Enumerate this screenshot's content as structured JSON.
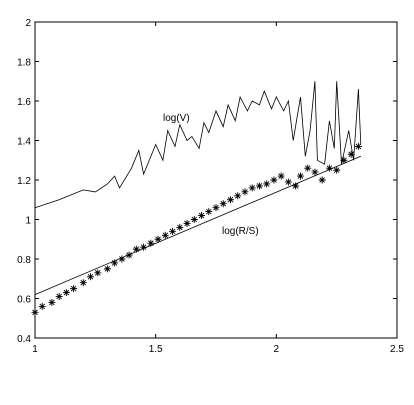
{
  "chart_data": {
    "type": "line",
    "xlim": [
      1,
      2.5
    ],
    "ylim": [
      0.4,
      2
    ],
    "xticks": [
      1,
      1.5,
      2,
      2.5
    ],
    "yticks": [
      0.4,
      0.6,
      0.8,
      1,
      1.2,
      1.4,
      1.6,
      1.8,
      2
    ],
    "color": "#000000",
    "series": [
      {
        "name": "log(V)",
        "marker": "none",
        "x": [
          1,
          1.1,
          1.2,
          1.25,
          1.3,
          1.33,
          1.35,
          1.4,
          1.43,
          1.45,
          1.5,
          1.53,
          1.55,
          1.58,
          1.6,
          1.63,
          1.65,
          1.68,
          1.7,
          1.72,
          1.75,
          1.78,
          1.8,
          1.83,
          1.85,
          1.88,
          1.9,
          1.93,
          1.95,
          1.98,
          2.0,
          2.03,
          2.05,
          2.07,
          2.1,
          2.12,
          2.14,
          2.16,
          2.17,
          2.2,
          2.22,
          2.24,
          2.25,
          2.27,
          2.3,
          2.32,
          2.34,
          2.35
        ],
        "values": [
          1.06,
          1.1,
          1.15,
          1.14,
          1.18,
          1.22,
          1.16,
          1.26,
          1.35,
          1.23,
          1.38,
          1.3,
          1.45,
          1.37,
          1.48,
          1.4,
          1.42,
          1.36,
          1.49,
          1.44,
          1.55,
          1.47,
          1.58,
          1.5,
          1.62,
          1.55,
          1.6,
          1.58,
          1.65,
          1.56,
          1.62,
          1.55,
          1.6,
          1.4,
          1.62,
          1.32,
          1.45,
          1.7,
          1.3,
          1.28,
          1.5,
          1.36,
          1.7,
          1.28,
          1.45,
          1.3,
          1.66,
          1.38
        ]
      },
      {
        "name": "log(R/S)",
        "marker": "star",
        "x": [
          1.0,
          1.03,
          1.07,
          1.1,
          1.13,
          1.16,
          1.2,
          1.23,
          1.26,
          1.3,
          1.33,
          1.36,
          1.39,
          1.42,
          1.45,
          1.48,
          1.51,
          1.54,
          1.57,
          1.6,
          1.63,
          1.66,
          1.69,
          1.72,
          1.75,
          1.78,
          1.81,
          1.84,
          1.87,
          1.9,
          1.93,
          1.96,
          1.99,
          2.02,
          2.05,
          2.08,
          2.1,
          2.13,
          2.16,
          2.19,
          2.22,
          2.25,
          2.28,
          2.31,
          2.34
        ],
        "values": [
          0.53,
          0.56,
          0.58,
          0.61,
          0.63,
          0.65,
          0.68,
          0.71,
          0.73,
          0.75,
          0.78,
          0.8,
          0.82,
          0.85,
          0.86,
          0.88,
          0.9,
          0.92,
          0.94,
          0.96,
          0.98,
          1.0,
          1.02,
          1.04,
          1.06,
          1.08,
          1.1,
          1.12,
          1.14,
          1.16,
          1.17,
          1.18,
          1.2,
          1.22,
          1.19,
          1.17,
          1.22,
          1.26,
          1.24,
          1.2,
          1.26,
          1.25,
          1.3,
          1.33,
          1.37
        ]
      }
    ],
    "fit_line": {
      "x": [
        1,
        2.35
      ],
      "values": [
        0.62,
        1.32
      ]
    }
  }
}
